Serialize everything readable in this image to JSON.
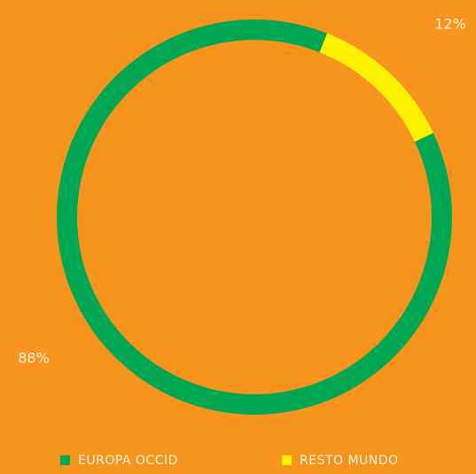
{
  "chart_data": {
    "type": "donut",
    "categories": [
      "EUROPA OCCID",
      "RESTO MUNDO"
    ],
    "values": [
      88,
      12
    ],
    "value_labels": [
      "88%",
      "12%"
    ],
    "colors": [
      "#00a651",
      "#fff200"
    ],
    "legend": "bottom"
  }
}
